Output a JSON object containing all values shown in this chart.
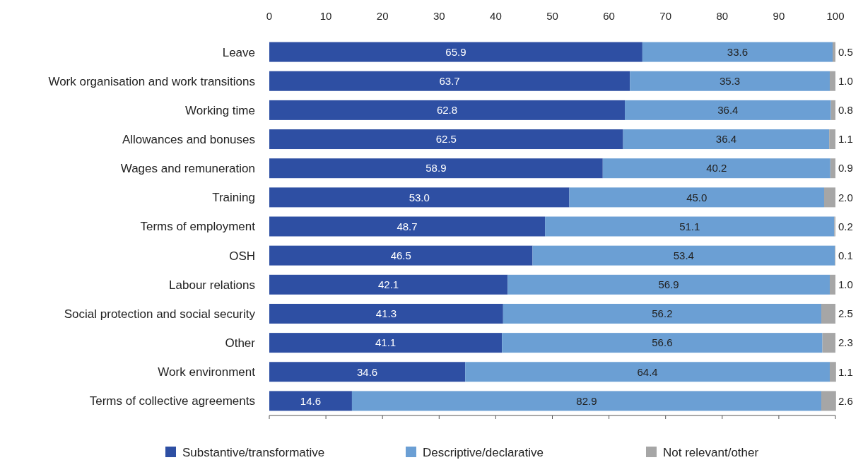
{
  "chart_data": {
    "type": "bar",
    "orientation": "horizontal",
    "stacked": true,
    "legend": "bottom",
    "xlim": [
      0,
      100
    ],
    "xticks": [
      0,
      10,
      20,
      30,
      40,
      50,
      60,
      70,
      80,
      90,
      100
    ],
    "categories": [
      "Leave",
      "Work organisation and work transitions",
      "Working time",
      "Allowances and bonuses",
      "Wages and remuneration",
      "Training",
      "Terms of employment",
      "OSH",
      "Labour relations",
      "Social protection and social security",
      "Other",
      "Work environment",
      "Terms of collective agreements"
    ],
    "series": [
      {
        "name": "Substantive/transformative",
        "color": "#2e4fa3",
        "values": [
          65.9,
          63.7,
          62.8,
          62.5,
          58.9,
          53.0,
          48.7,
          46.5,
          42.1,
          41.3,
          41.1,
          34.6,
          14.6
        ],
        "value_labels": [
          "65.9",
          "63.7",
          "62.8",
          "62.5",
          "58.9",
          "53.0",
          "48.7",
          "46.5",
          "42.1",
          "41.3",
          "41.1",
          "34.6",
          "14.6"
        ]
      },
      {
        "name": "Descriptive/declarative",
        "color": "#6b9fd4",
        "values": [
          33.6,
          35.3,
          36.4,
          36.4,
          40.2,
          45.0,
          51.1,
          53.4,
          56.9,
          56.2,
          56.6,
          64.4,
          82.9
        ],
        "value_labels": [
          "33.6",
          "35.3",
          "36.4",
          "36.4",
          "40.2",
          "45.0",
          "51.1",
          "53.4",
          "56.9",
          "56.2",
          "56.6",
          "64.4",
          "82.9"
        ]
      },
      {
        "name": "Not relevant/other",
        "color": "#a6a6a6",
        "values": [
          0.5,
          1.0,
          0.8,
          1.1,
          0.9,
          2.0,
          0.2,
          0.1,
          1.0,
          2.5,
          2.3,
          1.1,
          2.6
        ],
        "value_labels": [
          "0.5",
          "1.0",
          "0.8",
          "1.1",
          "0.9",
          "2.0",
          "0.2",
          "0.1",
          "1.0",
          "2.5",
          "2.3",
          "1.1",
          "2.6"
        ]
      }
    ]
  }
}
